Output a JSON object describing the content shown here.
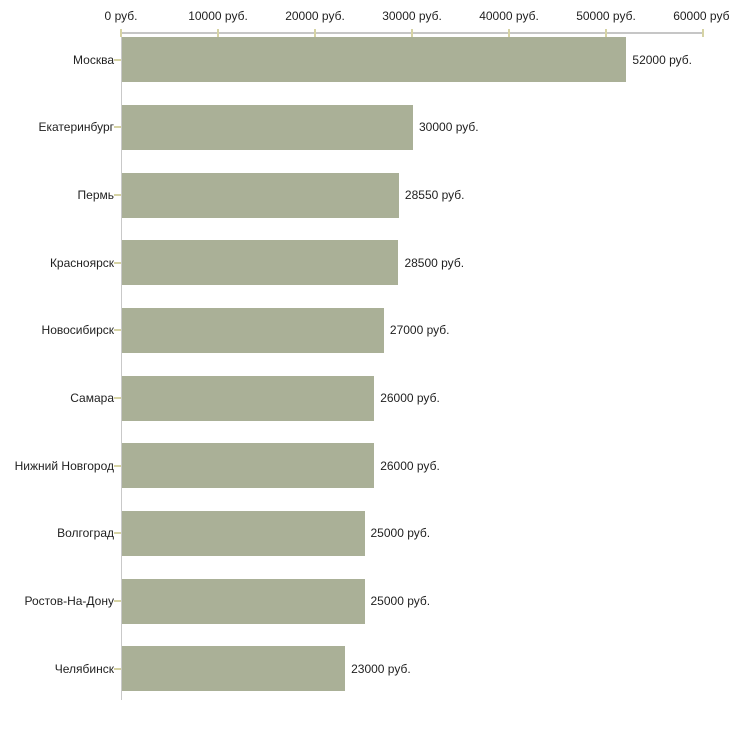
{
  "chart_data": {
    "type": "bar",
    "orientation": "horizontal",
    "title": "",
    "xlabel": "",
    "ylabel": "",
    "unit": "руб.",
    "categories": [
      "Москва",
      "Екатеринбург",
      "Пермь",
      "Красноярск",
      "Новосибирск",
      "Самара",
      "Нижний Новгород",
      "Волгоград",
      "Ростов-На-Дону",
      "Челябинск"
    ],
    "values": [
      52000,
      30000,
      28550,
      28500,
      27000,
      26000,
      26000,
      25000,
      25000,
      23000
    ],
    "value_labels": [
      "52000 руб.",
      "30000 руб.",
      "28550 руб.",
      "28500 руб.",
      "27000 руб.",
      "26000 руб.",
      "26000 руб.",
      "25000 руб.",
      "25000 руб.",
      "23000 руб."
    ],
    "x_axis": {
      "position": "top",
      "range": [
        0,
        60000
      ],
      "ticks": [
        0,
        10000,
        20000,
        30000,
        40000,
        50000,
        60000
      ],
      "tick_labels": [
        "0 руб.",
        "10000 руб.",
        "20000 руб.",
        "30000 руб.",
        "40000 руб.",
        "50000 руб.",
        "60000 руб."
      ]
    },
    "grid": false,
    "legend": false,
    "colors": {
      "bar_fill": "#aab097",
      "axis_line": "#c6c6c6",
      "tick_mark": "#d6d3a4",
      "text": "#1f1f1f",
      "background": "#ffffff"
    }
  }
}
